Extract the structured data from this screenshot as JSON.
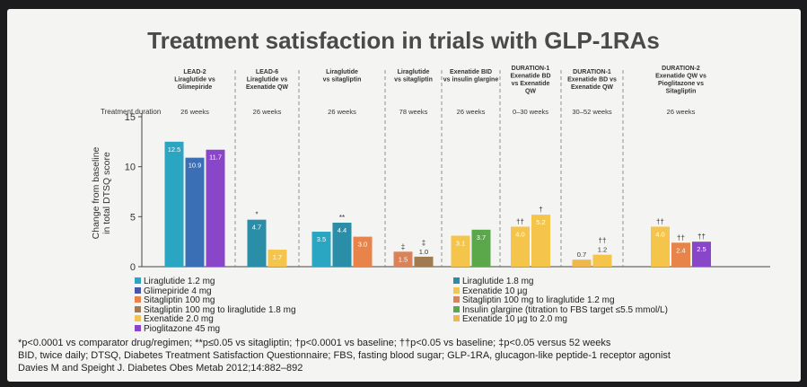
{
  "title": "Treatment satisfaction in trials with GLP-1RAs",
  "colors": {
    "lira12": "#2aa6c2",
    "glimepiride": "#4a57a8",
    "glimepiride_fill": "#3b6fb5",
    "pioglitazone": "#8a46c8",
    "sitagliptin": "#e8844a",
    "sita_to_lira": "#a07a50",
    "exenatide2": "#f5c44a",
    "lira18": "#2a8ea8",
    "exenatide10": "#f5c44a",
    "sita100_to_lira": "#d9835a",
    "insulin_glargine": "#5ba84a",
    "exen10_to_2": "#f0b84a"
  },
  "footnotes": [
    "*p<0.0001 vs comparator drug/regimen; **p≤0.05 vs sitagliptin; †p<0.0001 vs baseline; ††p<0.05 vs baseline; ‡p<0.05 versus 52 weeks",
    "BID, twice daily; DTSQ, Diabetes Treatment Satisfaction Questionnaire; FBS, fasting blood sugar; GLP-1RA, glucagon-like peptide-1 receptor agonist",
    "Davies M and Speight J. Diabetes Obes Metab 2012;14:882–892"
  ],
  "chart_data": {
    "type": "bar",
    "ylabel": "Change from baseline in total DTSQ score",
    "ylim": [
      0,
      15
    ],
    "yticks": [
      0,
      5,
      10,
      15
    ],
    "duration_label": "Treatment duration",
    "groups": [
      {
        "lines": [
          "LEAD-2",
          "Liraglutide vs",
          "Glimepiride"
        ],
        "duration": "26 weeks",
        "bars": [
          {
            "series": "Liraglutide 1.2 mg",
            "value": 12.5,
            "label": "12.5",
            "mark": "",
            "color": "lira12"
          },
          {
            "series": "Glimepiride 4 mg",
            "value": 10.9,
            "label": "10.9",
            "mark": "",
            "color": "glimepiride_fill"
          },
          {
            "series": "Pioglitazone 45 mg",
            "value": 11.7,
            "label": "11.7",
            "mark": "",
            "color": "pioglitazone"
          }
        ]
      },
      {
        "lines": [
          "LEAD-6",
          "Liraglutide vs",
          "Exenatide QW"
        ],
        "duration": "26 weeks",
        "bars": [
          {
            "series": "Liraglutide 1.8 mg",
            "value": 4.7,
            "label": "4.7",
            "mark": "*",
            "color": "lira18"
          },
          {
            "series": "Exenatide 10 µg",
            "value": 1.7,
            "label": "1.7",
            "mark": "",
            "color": "exenatide10"
          }
        ]
      },
      {
        "lines": [
          "Liraglutide",
          "vs sitagliptin"
        ],
        "duration": "26 weeks",
        "bars": [
          {
            "series": "Liraglutide 1.2 mg",
            "value": 3.5,
            "label": "3.5",
            "mark": "",
            "color": "lira12"
          },
          {
            "series": "Liraglutide 1.8 mg",
            "value": 4.4,
            "label": "4.4",
            "mark": "**",
            "color": "lira18"
          },
          {
            "series": "Sitagliptin 100 mg",
            "value": 3.0,
            "label": "3.0",
            "mark": "",
            "color": "sitagliptin"
          }
        ]
      },
      {
        "lines": [
          "Liraglutide",
          "vs sitagliptin"
        ],
        "duration": "78 weeks",
        "bars": [
          {
            "series": "Sitagliptin 100 mg to liraglutide 1.2 mg",
            "value": 1.5,
            "label": "1.5",
            "mark": "‡",
            "color": "sita100_to_lira"
          },
          {
            "series": "Sitagliptin 100 mg to liraglutide 1.8 mg",
            "value": 1.0,
            "label": "1.0",
            "mark": "‡",
            "color": "sita_to_lira"
          }
        ]
      },
      {
        "lines": [
          "Exenatide BID",
          "vs insulin glargine"
        ],
        "duration": "26 weeks",
        "bars": [
          {
            "series": "Exenatide 10 µg",
            "value": 3.1,
            "label": "3.1",
            "mark": "",
            "color": "exenatide10"
          },
          {
            "series": "Insulin glargine (titration to FBS target ≤5.5 mmol/L)",
            "value": 3.7,
            "label": "3.7",
            "mark": "",
            "color": "insulin_glargine"
          }
        ]
      },
      {
        "lines": [
          "DURATION-1",
          "Exenatide BD",
          "vs Exenatide",
          "QW"
        ],
        "duration": "0–30 weeks",
        "bars": [
          {
            "series": "Exenatide 10 µg",
            "value": 4.0,
            "label": "4.0",
            "mark": "††",
            "color": "exenatide10"
          },
          {
            "series": "Exenatide 2.0 mg",
            "value": 5.2,
            "label": "5.2",
            "mark": "†",
            "color": "exenatide2"
          }
        ]
      },
      {
        "lines": [
          "DURATION-1",
          "Exenatide BD vs",
          "Exenatide QW"
        ],
        "duration": "30–52 weeks",
        "bars": [
          {
            "series": "Exenatide 10 µg to 2.0 mg",
            "value": 0.7,
            "label": "0.7",
            "mark": "",
            "color": "exen10_to_2"
          },
          {
            "series": "Exenatide 2.0 mg",
            "value": 1.2,
            "label": "1.2",
            "mark": "††",
            "color": "exenatide2"
          }
        ]
      },
      {
        "lines": [
          "DURATION-2",
          "Exenatide QW vs",
          "Pioglitazone vs",
          "Sitagliptin"
        ],
        "duration": "26 weeks",
        "bars": [
          {
            "series": "Exenatide 2.0 mg",
            "value": 4.0,
            "label": "4.0",
            "mark": "††",
            "color": "exenatide2"
          },
          {
            "series": "Sitagliptin 100 mg",
            "value": 2.4,
            "label": "2.4",
            "mark": "††",
            "color": "sitagliptin"
          },
          {
            "series": "Pioglitazone 45 mg",
            "value": 2.5,
            "label": "2.5",
            "mark": "††",
            "color": "pioglitazone"
          }
        ]
      }
    ],
    "legend_left": [
      {
        "name": "Liraglutide 1.2 mg",
        "color": "lira12"
      },
      {
        "name": "Glimepiride 4 mg",
        "color": "glimepiride"
      },
      {
        "name": "Sitagliptin 100 mg",
        "color": "sitagliptin"
      },
      {
        "name": "Sitagliptin 100 mg to liraglutide 1.8 mg",
        "color": "sita_to_lira"
      },
      {
        "name": "Exenatide 2.0 mg",
        "color": "exenatide2"
      },
      {
        "name": "Pioglitazone 45 mg",
        "color": "pioglitazone"
      }
    ],
    "legend_right": [
      {
        "name": "Liraglutide 1.8 mg",
        "color": "lira18"
      },
      {
        "name": "Exenatide 10 µg",
        "color": "exenatide10"
      },
      {
        "name": "Sitagliptin 100 mg to liraglutide 1.2 mg",
        "color": "sita100_to_lira"
      },
      {
        "name": "Insulin glargine (titration to FBS target ≤5.5 mmol/L)",
        "color": "insulin_glargine"
      },
      {
        "name": "Exenatide 10 µg to 2.0 mg",
        "color": "exen10_to_2"
      }
    ]
  }
}
